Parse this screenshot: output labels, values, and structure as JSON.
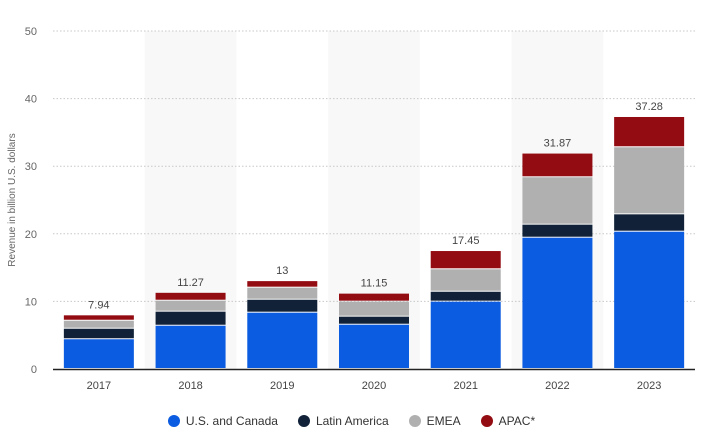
{
  "chart_data": {
    "type": "stacked-bar",
    "title": "",
    "xlabel": "",
    "ylabel": "Revenue in billion U.S. dollars",
    "ylim": [
      0,
      50
    ],
    "yticks": [
      0,
      10,
      20,
      30,
      40,
      50
    ],
    "grid": true,
    "legend_position": "bottom",
    "categories": [
      "2017",
      "2018",
      "2019",
      "2020",
      "2021",
      "2022",
      "2023"
    ],
    "totals": [
      "7.94",
      "11.27",
      "13",
      "11.15",
      "17.45",
      "31.87",
      "37.28"
    ],
    "series": [
      {
        "name": "U.S. and Canada",
        "color": "#0b5ce0",
        "values": [
          4.4,
          6.4,
          8.33,
          6.55,
          9.96,
          19.42,
          20.31
        ]
      },
      {
        "name": "Latin America",
        "color": "#112238",
        "values": [
          1.56,
          2.08,
          1.92,
          1.19,
          1.47,
          1.93,
          2.57
        ]
      },
      {
        "name": "EMEA",
        "color": "#b0b0b0",
        "values": [
          1.18,
          1.62,
          1.78,
          2.22,
          3.32,
          7.01,
          9.92
        ]
      },
      {
        "name": "APAC*",
        "color": "#930c12",
        "values": [
          0.8,
          1.17,
          0.97,
          1.19,
          2.7,
          3.51,
          4.48
        ]
      }
    ]
  }
}
